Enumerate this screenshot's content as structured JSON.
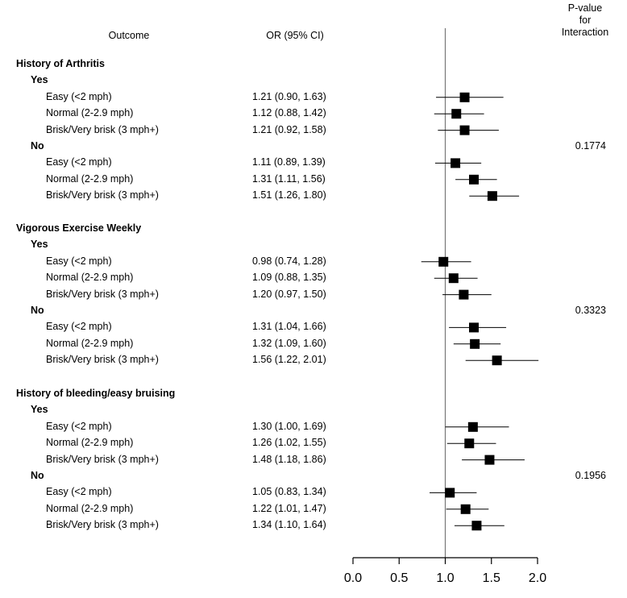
{
  "chart_data": {
    "type": "forest",
    "header": {
      "outcome": "Outcome",
      "or_ci": "OR (95% CI)",
      "pvalue": [
        "P-value",
        "for",
        "Interaction"
      ]
    },
    "xlim": [
      0.0,
      2.0
    ],
    "xticks": [
      "0.0",
      "0.5",
      "1.0",
      "1.5",
      "2.0"
    ],
    "reference_line": 1.0,
    "groups": [
      {
        "name": "History of Arthritis",
        "subgroups": [
          {
            "name": "Yes",
            "pvalue": "",
            "rows": [
              {
                "label": "Easy (<2 mph)",
                "text": "1.21 (0.90, 1.63)",
                "or": 1.21,
                "lo": 0.9,
                "hi": 1.63
              },
              {
                "label": "Normal (2-2.9 mph)",
                "text": "1.12 (0.88, 1.42)",
                "or": 1.12,
                "lo": 0.88,
                "hi": 1.42
              },
              {
                "label": "Brisk/Very brisk (3 mph+)",
                "text": "1.21 (0.92, 1.58)",
                "or": 1.21,
                "lo": 0.92,
                "hi": 1.58
              }
            ]
          },
          {
            "name": "No",
            "pvalue": "0.1774",
            "rows": [
              {
                "label": "Easy (<2 mph)",
                "text": "1.11 (0.89, 1.39)",
                "or": 1.11,
                "lo": 0.89,
                "hi": 1.39
              },
              {
                "label": "Normal (2-2.9 mph)",
                "text": "1.31 (1.11, 1.56)",
                "or": 1.31,
                "lo": 1.11,
                "hi": 1.56
              },
              {
                "label": "Brisk/Very brisk (3 mph+)",
                "text": "1.51 (1.26, 1.80)",
                "or": 1.51,
                "lo": 1.26,
                "hi": 1.8
              }
            ]
          }
        ]
      },
      {
        "name": "Vigorous Exercise Weekly",
        "subgroups": [
          {
            "name": "Yes",
            "pvalue": "",
            "rows": [
              {
                "label": "Easy (<2 mph)",
                "text": "0.98 (0.74, 1.28)",
                "or": 0.98,
                "lo": 0.74,
                "hi": 1.28
              },
              {
                "label": "Normal (2-2.9 mph)",
                "text": "1.09 (0.88, 1.35)",
                "or": 1.09,
                "lo": 0.88,
                "hi": 1.35
              },
              {
                "label": "Brisk/Very brisk (3 mph+)",
                "text": "1.20 (0.97, 1.50)",
                "or": 1.2,
                "lo": 0.97,
                "hi": 1.5
              }
            ]
          },
          {
            "name": "No",
            "pvalue": "0.3323",
            "rows": [
              {
                "label": "Easy (<2 mph)",
                "text": "1.31 (1.04, 1.66)",
                "or": 1.31,
                "lo": 1.04,
                "hi": 1.66
              },
              {
                "label": "Normal (2-2.9 mph)",
                "text": "1.32 (1.09, 1.60)",
                "or": 1.32,
                "lo": 1.09,
                "hi": 1.6
              },
              {
                "label": "Brisk/Very brisk (3 mph+)",
                "text": "1.56 (1.22, 2.01)",
                "or": 1.56,
                "lo": 1.22,
                "hi": 2.01
              }
            ]
          }
        ]
      },
      {
        "name": "History of bleeding/easy bruising",
        "subgroups": [
          {
            "name": "Yes",
            "pvalue": "",
            "rows": [
              {
                "label": "Easy (<2 mph)",
                "text": "1.30 (1.00, 1.69)",
                "or": 1.3,
                "lo": 1.0,
                "hi": 1.69
              },
              {
                "label": "Normal (2-2.9 mph)",
                "text": "1.26 (1.02, 1.55)",
                "or": 1.26,
                "lo": 1.02,
                "hi": 1.55
              },
              {
                "label": "Brisk/Very brisk (3 mph+)",
                "text": "1.48 (1.18, 1.86)",
                "or": 1.48,
                "lo": 1.18,
                "hi": 1.86
              }
            ]
          },
          {
            "name": "No",
            "pvalue": "0.1956",
            "rows": [
              {
                "label": "Easy (<2 mph)",
                "text": "1.05 (0.83, 1.34)",
                "or": 1.05,
                "lo": 0.83,
                "hi": 1.34
              },
              {
                "label": "Normal (2-2.9 mph)",
                "text": "1.22 (1.01, 1.47)",
                "or": 1.22,
                "lo": 1.01,
                "hi": 1.47
              },
              {
                "label": "Brisk/Very brisk (3 mph+)",
                "text": "1.34 (1.10, 1.64)",
                "or": 1.34,
                "lo": 1.1,
                "hi": 1.64
              }
            ]
          }
        ]
      }
    ]
  }
}
